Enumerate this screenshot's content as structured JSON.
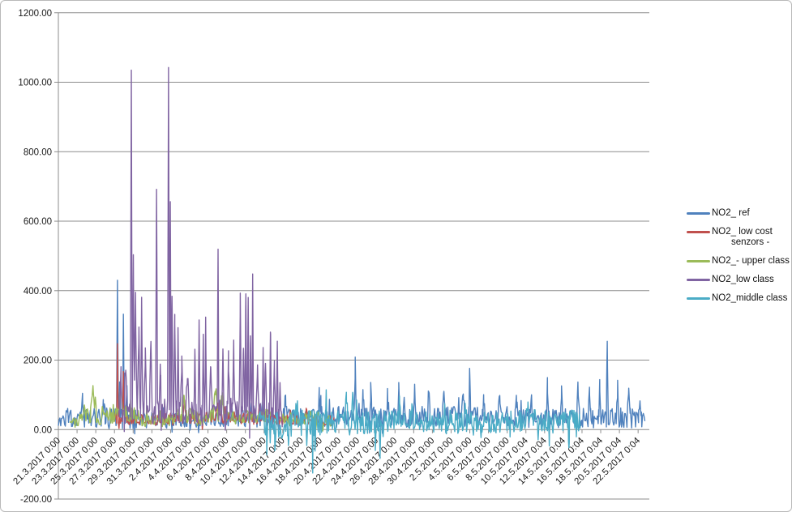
{
  "window": {
    "background": "#ffffff",
    "frame_border": "#b9b9b9"
  },
  "chart_data": {
    "type": "line",
    "title": "",
    "xlabel": "",
    "ylabel": "",
    "grid": true,
    "legend_position": "right",
    "y_axis": {
      "min": -200,
      "max": 1200,
      "step": 200,
      "tick_labels": [
        "1200.00",
        "1000.00",
        "800.00",
        "600.00",
        "400.00",
        "200.00",
        "0.00",
        "-200.00"
      ],
      "gridline_color": "#8c8c8c",
      "label_color": "#1a1a1a"
    },
    "x_axis": {
      "tick_interval_days": 2,
      "start_day": 0,
      "end_day": 63.2,
      "label_rotation_deg": 45,
      "label_color": "#1a1a1a",
      "tick_labels": [
        "21.3.2017 0:00",
        "23.3.2017 0:00",
        "25.3.2017 0:00",
        "27.3.2017 0:00",
        "29.3.2017 0:00",
        "31.3.2017 0:00",
        "2.4.2017 0:00",
        "4.4.2017 0:00",
        "6.4.2017 0:00",
        "8.4.2017 0:00",
        "10.4.2017 0:00",
        "12.4.2017 0:00",
        "14.4.2017 0:00",
        "16.4.2017 0:00",
        "18.4.2017 0:00",
        "20.4.2017 0:00",
        "22.4.2017 0:00",
        "24.4.2017 0:00",
        "26.4.2017 0:00",
        "28.4.2017 0:00",
        "30.4.2017 0:00",
        "2.5.2017 0:00",
        "4.5.2017 0:00",
        "6.5.2017 0:00",
        "8.5.2017 0:00",
        "10.5.2017 0:04",
        "12.5.2017 0:04",
        "14.5.2017 0:04",
        "16.5.2017 0:04",
        "18.5.2017 0:04",
        "20.5.2017 0:04",
        "22.5.2017 0:04"
      ]
    },
    "series": [
      {
        "name": "NO2_ ref",
        "color": "#4F81BD",
        "seed": 7,
        "start_day": 0,
        "end_day": 62.8,
        "step_day": 0.0833,
        "baseline": [
          [
            0,
            35
          ],
          [
            6,
            32
          ],
          [
            12,
            26
          ],
          [
            20,
            30
          ],
          [
            28,
            38
          ],
          [
            36,
            36
          ],
          [
            44,
            38
          ],
          [
            52,
            32
          ],
          [
            62.8,
            34
          ]
        ],
        "noise": [
          [
            0,
            26
          ],
          [
            6,
            30
          ],
          [
            12,
            22
          ],
          [
            20,
            26
          ],
          [
            30,
            30
          ],
          [
            40,
            30
          ],
          [
            50,
            28
          ],
          [
            62.8,
            30
          ]
        ],
        "spikes": [
          [
            2.6,
            60,
            0.2
          ],
          [
            4.8,
            55,
            0.2
          ],
          [
            6.32,
            405,
            0.1
          ],
          [
            6.55,
            120,
            0.1
          ],
          [
            6.95,
            300,
            0.09
          ],
          [
            7.3,
            90,
            0.15
          ],
          [
            24.3,
            60,
            0.2
          ],
          [
            27.9,
            60,
            0.2
          ],
          [
            31.75,
            145,
            0.12
          ],
          [
            32.6,
            70,
            0.15
          ],
          [
            33.4,
            85,
            0.12
          ],
          [
            35.2,
            65,
            0.15
          ],
          [
            36.4,
            75,
            0.12
          ],
          [
            38.1,
            65,
            0.15
          ],
          [
            39.6,
            65,
            0.15
          ],
          [
            41.2,
            85,
            0.12
          ],
          [
            43.3,
            75,
            0.15
          ],
          [
            44.0,
            140,
            0.1
          ],
          [
            45.5,
            65,
            0.15
          ],
          [
            47.2,
            75,
            0.15
          ],
          [
            49.0,
            65,
            0.15
          ],
          [
            50.6,
            75,
            0.12
          ],
          [
            52.3,
            65,
            0.15
          ],
          [
            53.8,
            85,
            0.12
          ],
          [
            55.6,
            75,
            0.15
          ],
          [
            56.8,
            85,
            0.12
          ],
          [
            57.9,
            95,
            0.12
          ],
          [
            58.7,
            215,
            0.1
          ],
          [
            59.8,
            85,
            0.15
          ],
          [
            61.0,
            75,
            0.15
          ],
          [
            62.2,
            65,
            0.15
          ]
        ]
      },
      {
        "name": "NO2_ low cost senzors -",
        "color": "#C0504D",
        "seed": 13,
        "start_day": 5.9,
        "end_day": 29.5,
        "step_day": 0.0833,
        "baseline": [
          [
            5.9,
            26
          ],
          [
            8,
            30
          ],
          [
            12,
            30
          ],
          [
            16,
            34
          ],
          [
            20,
            34
          ],
          [
            24,
            30
          ],
          [
            29.5,
            26
          ]
        ],
        "noise": [
          [
            5.9,
            14
          ],
          [
            12,
            18
          ],
          [
            20,
            18
          ],
          [
            29.5,
            14
          ]
        ],
        "spikes": [
          [
            6.32,
            230,
            0.09
          ],
          [
            6.95,
            150,
            0.08
          ],
          [
            13.5,
            40,
            0.2
          ],
          [
            17.0,
            40,
            0.2
          ],
          [
            21.5,
            35,
            0.2
          ],
          [
            26.5,
            30,
            0.2
          ]
        ]
      },
      {
        "name": "NO2_- upper class",
        "color": "#9BBB59",
        "seed": 21,
        "start_day": 1.2,
        "end_day": 29.4,
        "step_day": 0.0833,
        "baseline": [
          [
            1.2,
            18
          ],
          [
            2.5,
            26
          ],
          [
            3.6,
            50
          ],
          [
            4.6,
            38
          ],
          [
            6.2,
            48
          ],
          [
            7.2,
            55
          ],
          [
            8.5,
            32
          ],
          [
            10.5,
            26
          ],
          [
            12,
            30
          ],
          [
            13.5,
            45
          ],
          [
            15,
            34
          ],
          [
            16.8,
            50
          ],
          [
            18.5,
            38
          ],
          [
            20.5,
            34
          ],
          [
            22.5,
            38
          ],
          [
            24.5,
            30
          ],
          [
            27,
            32
          ],
          [
            29.4,
            24
          ]
        ],
        "noise": [
          [
            1.2,
            14
          ],
          [
            3.5,
            26
          ],
          [
            6,
            30
          ],
          [
            10,
            20
          ],
          [
            14,
            24
          ],
          [
            18,
            24
          ],
          [
            24,
            20
          ],
          [
            29.4,
            16
          ]
        ],
        "spikes": [
          [
            3.75,
            65,
            0.3
          ],
          [
            6.7,
            70,
            0.25
          ],
          [
            13.4,
            55,
            0.25
          ],
          [
            16.8,
            60,
            0.25
          ],
          [
            17.5,
            45,
            0.2
          ]
        ]
      },
      {
        "name": "NO2_low class",
        "color": "#8064A2",
        "seed": 29,
        "start_day": 6.45,
        "end_day": 23.95,
        "step_day": 0.0833,
        "baseline": [
          [
            6.45,
            40
          ],
          [
            8,
            55
          ],
          [
            10,
            48
          ],
          [
            12,
            55
          ],
          [
            14,
            45
          ],
          [
            16,
            45
          ],
          [
            18,
            50
          ],
          [
            20,
            62
          ],
          [
            22,
            46
          ],
          [
            23.95,
            36
          ]
        ],
        "noise": [
          [
            6.45,
            30
          ],
          [
            10,
            36
          ],
          [
            14,
            34
          ],
          [
            18,
            38
          ],
          [
            21,
            42
          ],
          [
            23.95,
            30
          ]
        ],
        "spikes": [
          [
            6.7,
            110,
            0.15
          ],
          [
            7.2,
            140,
            0.15
          ],
          [
            7.8,
            975,
            0.1
          ],
          [
            8.02,
            420,
            0.12
          ],
          [
            8.25,
            330,
            0.15
          ],
          [
            8.6,
            250,
            0.15
          ],
          [
            8.9,
            320,
            0.12
          ],
          [
            9.3,
            180,
            0.15
          ],
          [
            9.9,
            200,
            0.15
          ],
          [
            10.5,
            655,
            0.1
          ],
          [
            10.9,
            150,
            0.15
          ],
          [
            11.0,
            -95,
            0.06
          ],
          [
            11.78,
            975,
            0.1
          ],
          [
            11.97,
            600,
            0.08
          ],
          [
            12.15,
            350,
            0.1
          ],
          [
            12.45,
            280,
            0.12
          ],
          [
            12.8,
            230,
            0.12
          ],
          [
            13.2,
            180,
            0.15
          ],
          [
            13.8,
            120,
            0.2
          ],
          [
            14.6,
            180,
            0.12
          ],
          [
            15.05,
            270,
            0.1
          ],
          [
            15.5,
            200,
            0.12
          ],
          [
            15.75,
            250,
            0.1
          ],
          [
            16.3,
            120,
            0.15
          ],
          [
            17.08,
            475,
            0.08
          ],
          [
            17.6,
            150,
            0.12
          ],
          [
            18.2,
            120,
            0.15
          ],
          [
            18.75,
            210,
            0.1
          ],
          [
            19.45,
            315,
            0.1
          ],
          [
            19.8,
            180,
            0.1
          ],
          [
            20.05,
            365,
            0.08
          ],
          [
            20.3,
            365,
            0.08
          ],
          [
            20.45,
            -70,
            0.05
          ],
          [
            20.55,
            200,
            0.1
          ],
          [
            20.78,
            365,
            0.08
          ],
          [
            21.3,
            130,
            0.15
          ],
          [
            21.9,
            200,
            0.1
          ],
          [
            22.15,
            150,
            0.1
          ],
          [
            22.68,
            235,
            0.1
          ],
          [
            23.1,
            130,
            0.12
          ],
          [
            23.42,
            205,
            0.1
          ],
          [
            23.7,
            90,
            0.1
          ]
        ]
      },
      {
        "name": "NO2_middle class",
        "color": "#4BACC6",
        "seed": 37,
        "start_day": 21.4,
        "end_day": 55.85,
        "step_day": 0.0833,
        "baseline": [
          [
            21.4,
            18
          ],
          [
            24,
            14
          ],
          [
            27,
            16
          ],
          [
            30,
            24
          ],
          [
            34,
            20
          ],
          [
            38,
            24
          ],
          [
            42,
            22
          ],
          [
            46,
            20
          ],
          [
            50,
            24
          ],
          [
            55.85,
            22
          ]
        ],
        "noise": [
          [
            21.4,
            34
          ],
          [
            24,
            40
          ],
          [
            27,
            44
          ],
          [
            30,
            34
          ],
          [
            34,
            36
          ],
          [
            38,
            30
          ],
          [
            42,
            34
          ],
          [
            46,
            30
          ],
          [
            50,
            34
          ],
          [
            55.85,
            34
          ]
        ],
        "spikes": [
          [
            22.3,
            -75,
            0.08
          ],
          [
            23.2,
            -65,
            0.08
          ],
          [
            24.6,
            -55,
            0.08
          ],
          [
            25.5,
            65,
            0.15
          ],
          [
            27.2,
            -130,
            0.06
          ],
          [
            27.45,
            -85,
            0.08
          ],
          [
            28.6,
            55,
            0.15
          ],
          [
            30.8,
            60,
            0.2
          ],
          [
            31.5,
            65,
            0.15
          ],
          [
            33.9,
            -90,
            0.06
          ],
          [
            34.4,
            -75,
            0.08
          ],
          [
            36.5,
            75,
            0.15
          ],
          [
            37.8,
            55,
            0.15
          ],
          [
            41.5,
            -55,
            0.08
          ],
          [
            43.5,
            55,
            0.15
          ],
          [
            45.2,
            -60,
            0.08
          ],
          [
            48.3,
            -55,
            0.08
          ],
          [
            50.2,
            55,
            0.15
          ],
          [
            52.5,
            -70,
            0.08
          ],
          [
            54.6,
            -65,
            0.08
          ],
          [
            55.4,
            -55,
            0.08
          ]
        ]
      }
    ]
  },
  "legend": {
    "items": [
      {
        "label_lines": [
          "NO2_ ref"
        ],
        "color": "#4F81BD"
      },
      {
        "label_lines": [
          "NO2_ low cost",
          "senzors -"
        ],
        "color": "#C0504D"
      },
      {
        "label_lines": [
          "NO2_- upper class"
        ],
        "color": "#9BBB59"
      },
      {
        "label_lines": [
          "NO2_low class"
        ],
        "color": "#8064A2"
      },
      {
        "label_lines": [
          "NO2_middle class"
        ],
        "color": "#4BACC6"
      }
    ]
  }
}
